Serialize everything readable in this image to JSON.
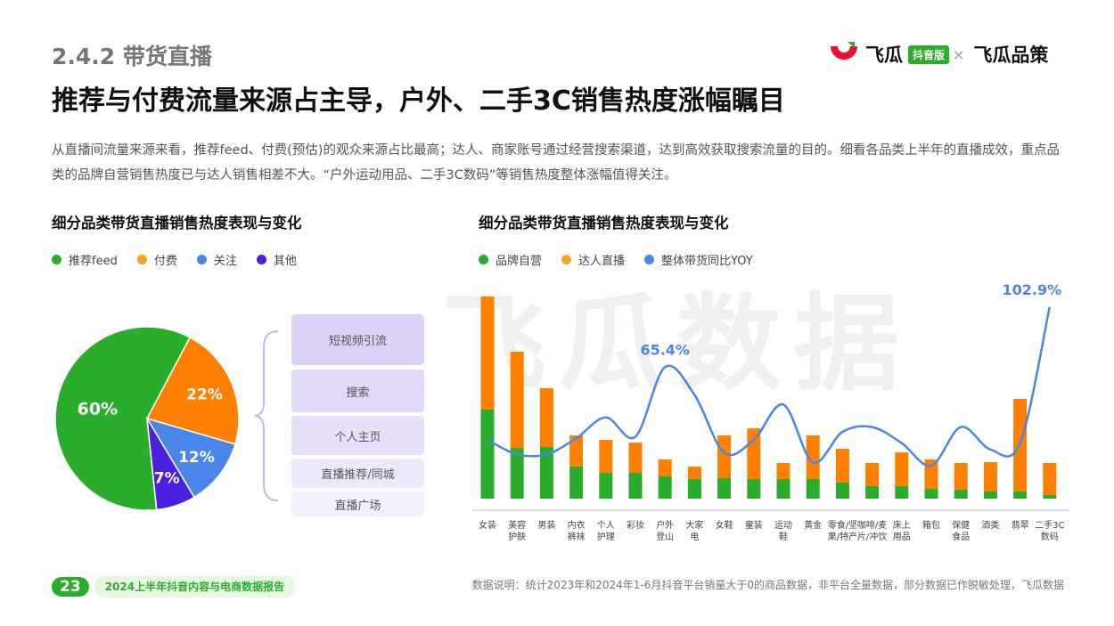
{
  "header": {
    "section": "2.4.2 带货直播",
    "headline": "推荐与付费流量来源占主导，户外、二手3C销售热度涨幅瞩目",
    "intro": "从直播间流量来源来看，推荐feed、付费(预估)的观众来源占比最高；达人、商家账号通过经营搜索渠道，达到高效获取搜索流量的目的。细看各品类上半年的直播成效，重点品类的品牌自营销售热度已与达人销售相差不大。“户外运动用品、二手3C数码”等销售热度整体涨幅值得关注。"
  },
  "brand": {
    "name_left": "飞瓜",
    "badge": "抖音版",
    "separator": "×",
    "name_right": "飞瓜品策"
  },
  "watermark": "飞瓜数据",
  "colors": {
    "green": "#2aad2a",
    "orange": "#ff7f00",
    "blue": "#4a86e8",
    "purple": "#4a1fe0"
  },
  "chart_data": [
    {
      "type": "pie",
      "title": "细分品类带货直播销售热度表现与变化",
      "legend_position": "top-left",
      "slices": [
        {
          "name": "推荐feed",
          "value": 60,
          "label": "60%",
          "color": "#2aad2a"
        },
        {
          "name": "付费",
          "value": 22,
          "label": "22%",
          "color": "#ff7f00"
        },
        {
          "name": "关注",
          "value": 12,
          "label": "12%",
          "color": "#4a86e8"
        },
        {
          "name": "其他",
          "value": 7,
          "label": "7%",
          "color": "#4a1fe0"
        }
      ],
      "legend_colors": [
        "#2aad2a",
        "#f5a623",
        "#4a86e8",
        "#4a1fe0"
      ],
      "annotation_items": [
        "短视频引流",
        "搜索",
        "个人主页",
        "直播推荐/同城",
        "直播广场"
      ]
    },
    {
      "type": "bar",
      "title": "细分品类带货直播销售热度表现与变化",
      "legend_position": "top-left",
      "categories": [
        "女装",
        "美容\n护肤",
        "男装",
        "内衣\n裤袜",
        "个人\n护理",
        "彩妆",
        "户外\n登山",
        "大家\n电",
        "女鞋",
        "童装",
        "运动\n鞋",
        "黄金",
        "零食/坚\n果/特产",
        "咖啡/麦\n片/冲饮",
        "床上\n用品",
        "箱包",
        "保健\n食品",
        "酒类",
        "翡翠",
        "二手3C\n数码"
      ],
      "series": [
        {
          "name": "品牌自营",
          "color": "#2aad2a",
          "values": [
            100,
            57,
            58,
            36,
            29,
            29,
            25,
            22,
            23,
            22,
            22,
            22,
            18,
            14,
            14,
            11,
            10,
            8,
            8,
            4
          ]
        },
        {
          "name": "达人直播",
          "color": "#ff7f00",
          "values": [
            127,
            108,
            66,
            35,
            37,
            34,
            19,
            14,
            48,
            57,
            18,
            49,
            38,
            26,
            38,
            33,
            30,
            33,
            104,
            36
          ]
        },
        {
          "name": "整体带货同比YOY",
          "color": "#4a86e8",
          "type": "line",
          "values": [
            20,
            11,
            11,
            21,
            34,
            22,
            65.4,
            48,
            12,
            20,
            42,
            6,
            25,
            28,
            18,
            4,
            28,
            14,
            18,
            102.9
          ]
        }
      ],
      "annotations": [
        {
          "series": "整体带货同比YOY",
          "category": "户外\n登山",
          "text": "65.4%"
        },
        {
          "series": "整体带货同比YOY",
          "category": "二手3C\n数码",
          "text": "102.9%"
        }
      ],
      "grid": false
    }
  ],
  "footer": {
    "page": "23",
    "report": "2024上半年抖音内容与电商数据报告",
    "note": "数据说明：统计2023年和2024年1-6月抖音平台销量大于0的商品数据，非平台全量数据，部分数据已作脱敏处理，飞瓜数据"
  }
}
